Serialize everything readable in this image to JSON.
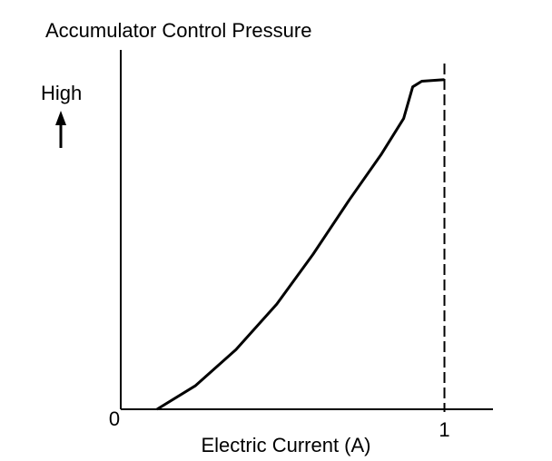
{
  "chart_data": {
    "type": "line",
    "title": "Accumulator Control Pressure",
    "y_label": "High",
    "x_label": "Electric Current (A)",
    "x": [
      0.112,
      0.23,
      0.356,
      0.482,
      0.594,
      0.706,
      0.804,
      0.874,
      0.902,
      0.93,
      1
    ],
    "series": [
      {
        "color": "#000000",
        "values": [
          0,
          0.071,
          0.181,
          0.319,
          0.47,
          0.635,
          0.772,
          0.882,
          0.978,
          0.995,
          1
        ]
      }
    ],
    "xlim": [
      0,
      1.15
    ],
    "ylim": [
      0,
      1.09
    ],
    "xticks": [
      0,
      1
    ]
  }
}
